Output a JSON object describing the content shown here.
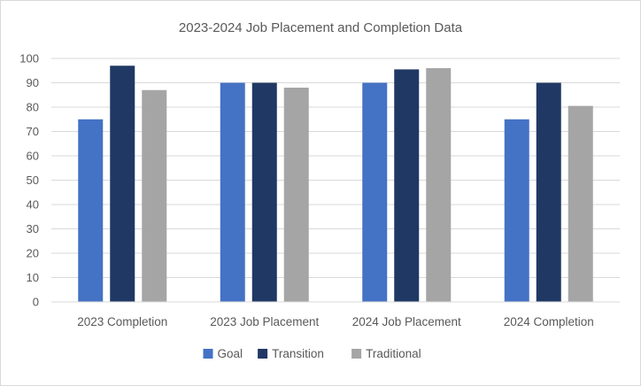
{
  "chart_data": {
    "type": "bar",
    "title": "2023-2024 Job Placement and Completion Data",
    "xlabel": "",
    "ylabel": "",
    "categories": [
      "2023 Completion",
      "2023 Job Placement",
      "2024 Job Placement",
      "2024 Completion"
    ],
    "series": [
      {
        "name": "Goal",
        "color": "#4472c4",
        "values": [
          75,
          90,
          90,
          75
        ]
      },
      {
        "name": "Transition",
        "color": "#203864",
        "values": [
          97,
          90,
          95.5,
          90
        ]
      },
      {
        "name": "Traditional",
        "color": "#a5a5a5",
        "values": [
          87,
          88,
          96,
          80.5
        ]
      }
    ],
    "ylim": [
      0,
      100
    ],
    "yticks": [
      0,
      10,
      20,
      30,
      40,
      50,
      60,
      70,
      80,
      90,
      100
    ],
    "grid": true,
    "legend": "bottom"
  }
}
